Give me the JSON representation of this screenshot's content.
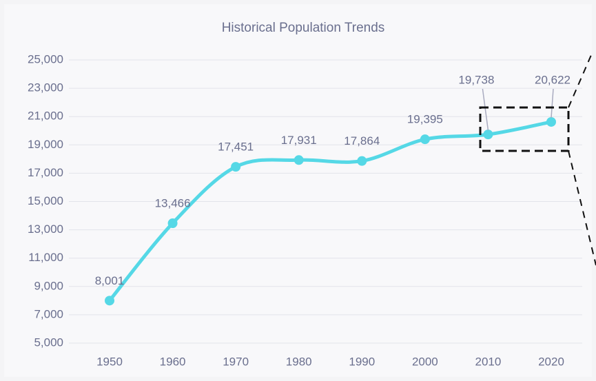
{
  "chart_data": {
    "type": "line",
    "title": "Historical Population Trends",
    "categories": [
      "1950",
      "1960",
      "1970",
      "1980",
      "1990",
      "2000",
      "2010",
      "2020"
    ],
    "series": [
      {
        "name": "Population",
        "color": "#55d8e6",
        "values": [
          8001,
          13466,
          17451,
          17931,
          17864,
          19395,
          19738,
          20622
        ],
        "value_labels": [
          "8,001",
          "13,466",
          "17,451",
          "17,931",
          "17,864",
          "19,395",
          "19,738",
          "20,622"
        ]
      }
    ],
    "ylim": [
      5000,
      25000
    ],
    "yticks": [
      {
        "value": 5000,
        "label": "5,000"
      },
      {
        "value": 7000,
        "label": "7,000"
      },
      {
        "value": 9000,
        "label": "9,000"
      },
      {
        "value": 11000,
        "label": "11,000"
      },
      {
        "value": 13000,
        "label": "13,000"
      },
      {
        "value": 15000,
        "label": "15,000"
      },
      {
        "value": 17000,
        "label": "17,000"
      },
      {
        "value": 19000,
        "label": "19,000"
      },
      {
        "value": 21000,
        "label": "21,000"
      },
      {
        "value": 23000,
        "label": "23,000"
      },
      {
        "value": 25000,
        "label": "25,000"
      }
    ],
    "grid": true
  }
}
